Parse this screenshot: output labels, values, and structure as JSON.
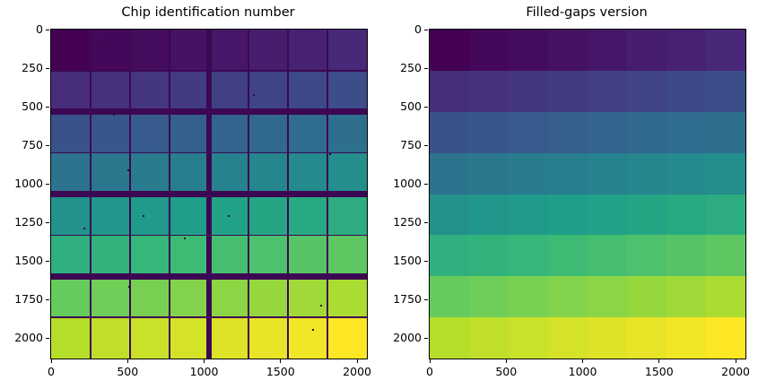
{
  "figure": {
    "background": "#ffffff",
    "axis_color": "#000000",
    "text_color": "#000000"
  },
  "colormap_stops": [
    "#440154",
    "#482878",
    "#3e4989",
    "#31688e",
    "#26828e",
    "#1f9e89",
    "#35b779",
    "#6ece58",
    "#b5de2b",
    "#fde725"
  ],
  "chart_data": [
    {
      "type": "heatmap",
      "title": "Chip identification number",
      "colormap": "viridis",
      "value_label": "chip identification number",
      "vmin": 0,
      "vmax": 63,
      "rows": 8,
      "cols": 8,
      "values": [
        [
          0,
          1,
          2,
          3,
          4,
          5,
          6,
          7
        ],
        [
          8,
          9,
          10,
          11,
          12,
          13,
          14,
          15
        ],
        [
          16,
          17,
          18,
          19,
          20,
          21,
          22,
          23
        ],
        [
          24,
          25,
          26,
          27,
          28,
          29,
          30,
          31
        ],
        [
          32,
          33,
          34,
          35,
          36,
          37,
          38,
          39
        ],
        [
          40,
          41,
          42,
          43,
          44,
          45,
          46,
          47
        ],
        [
          48,
          49,
          50,
          51,
          52,
          53,
          54,
          55
        ],
        [
          56,
          57,
          58,
          59,
          60,
          61,
          62,
          63
        ]
      ],
      "x_ticks": [
        0,
        500,
        1000,
        1500,
        2000
      ],
      "y_ticks": [
        0,
        250,
        500,
        750,
        1000,
        1250,
        1500,
        1750,
        2000
      ],
      "x_range": [
        0,
        2064
      ],
      "y_range": [
        0,
        2128
      ],
      "y_axis_inverted": true,
      "grid": false,
      "gaps": {
        "visible": true,
        "color": "#3c0753",
        "thick_col_boundaries": [
          4
        ],
        "thick_row_boundaries": [
          2,
          4,
          6
        ]
      },
      "defects": [
        {
          "fx": 0.15,
          "fy": 0.035
        },
        {
          "fx": 0.199,
          "fy": 0.259
        },
        {
          "fx": 0.643,
          "fy": 0.2
        },
        {
          "fx": 0.245,
          "fy": 0.428
        },
        {
          "fx": 0.25,
          "fy": 0.447
        },
        {
          "fx": 0.884,
          "fy": 0.38
        },
        {
          "fx": 0.293,
          "fy": 0.568
        },
        {
          "fx": 0.563,
          "fy": 0.566
        },
        {
          "fx": 0.105,
          "fy": 0.606
        },
        {
          "fx": 0.424,
          "fy": 0.634
        },
        {
          "fx": 0.248,
          "fy": 0.781
        },
        {
          "fx": 0.856,
          "fy": 0.838
        },
        {
          "fx": 0.83,
          "fy": 0.912
        }
      ]
    },
    {
      "type": "heatmap",
      "title": "Filled-gaps version",
      "colormap": "viridis",
      "value_label": "chip identification number",
      "vmin": 0,
      "vmax": 63,
      "rows": 8,
      "cols": 8,
      "values": [
        [
          0,
          1,
          2,
          3,
          4,
          5,
          6,
          7
        ],
        [
          8,
          9,
          10,
          11,
          12,
          13,
          14,
          15
        ],
        [
          16,
          17,
          18,
          19,
          20,
          21,
          22,
          23
        ],
        [
          24,
          25,
          26,
          27,
          28,
          29,
          30,
          31
        ],
        [
          32,
          33,
          34,
          35,
          36,
          37,
          38,
          39
        ],
        [
          40,
          41,
          42,
          43,
          44,
          45,
          46,
          47
        ],
        [
          48,
          49,
          50,
          51,
          52,
          53,
          54,
          55
        ],
        [
          56,
          57,
          58,
          59,
          60,
          61,
          62,
          63
        ]
      ],
      "x_ticks": [
        0,
        500,
        1000,
        1500,
        2000
      ],
      "y_ticks": [
        0,
        250,
        500,
        750,
        1000,
        1250,
        1500,
        1750,
        2000
      ],
      "x_range": [
        0,
        2064
      ],
      "y_range": [
        0,
        2128
      ],
      "y_axis_inverted": true,
      "grid": false,
      "gaps": {
        "visible": false
      },
      "defects": []
    }
  ]
}
